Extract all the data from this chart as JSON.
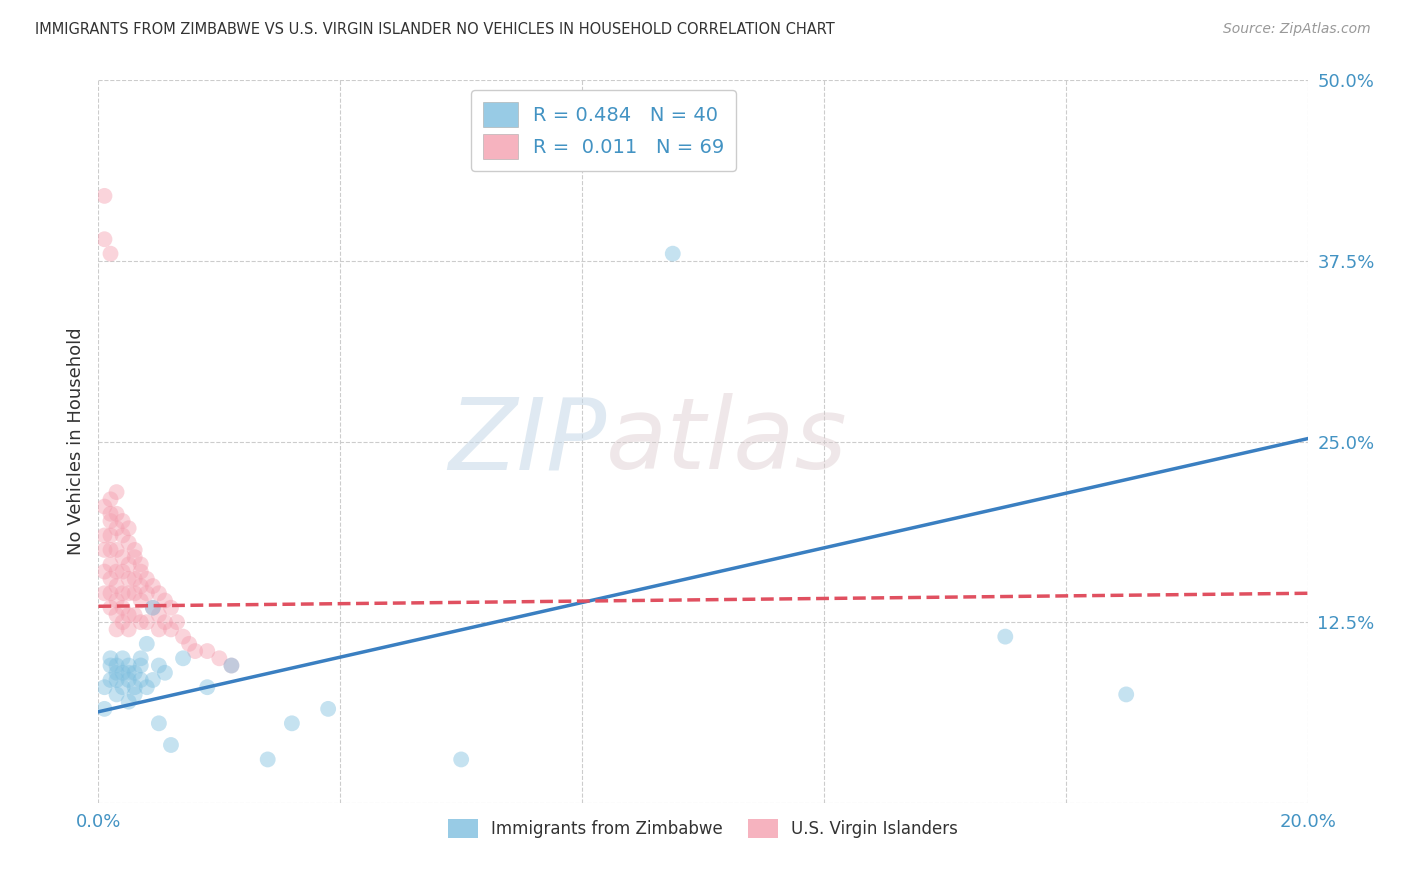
{
  "title": "IMMIGRANTS FROM ZIMBABWE VS U.S. VIRGIN ISLANDER NO VEHICLES IN HOUSEHOLD CORRELATION CHART",
  "source": "Source: ZipAtlas.com",
  "ylabel": "No Vehicles in Household",
  "xlim": [
    0.0,
    0.2
  ],
  "ylim": [
    0.0,
    0.5
  ],
  "xticks": [
    0.0,
    0.04,
    0.08,
    0.12,
    0.16,
    0.2
  ],
  "xticklabels": [
    "0.0%",
    "",
    "",
    "",
    "",
    "20.0%"
  ],
  "yticks": [
    0.0,
    0.125,
    0.25,
    0.375,
    0.5
  ],
  "yticklabels": [
    "",
    "12.5%",
    "25.0%",
    "37.5%",
    "50.0%"
  ],
  "grid_color": "#cccccc",
  "background_color": "#ffffff",
  "blue_R": 0.484,
  "blue_N": 40,
  "pink_R": 0.011,
  "pink_N": 69,
  "blue_color": "#7fbfdf",
  "pink_color": "#f4a0b0",
  "blue_line_color": "#3a7fc1",
  "pink_line_color": "#e05060",
  "blue_scatter_x": [
    0.001,
    0.001,
    0.002,
    0.002,
    0.002,
    0.003,
    0.003,
    0.003,
    0.003,
    0.004,
    0.004,
    0.004,
    0.005,
    0.005,
    0.005,
    0.005,
    0.006,
    0.006,
    0.006,
    0.007,
    0.007,
    0.007,
    0.008,
    0.008,
    0.009,
    0.009,
    0.01,
    0.01,
    0.011,
    0.012,
    0.014,
    0.018,
    0.022,
    0.028,
    0.032,
    0.038,
    0.06,
    0.095,
    0.15,
    0.17
  ],
  "blue_scatter_y": [
    0.08,
    0.065,
    0.095,
    0.085,
    0.1,
    0.075,
    0.09,
    0.095,
    0.085,
    0.08,
    0.09,
    0.1,
    0.07,
    0.085,
    0.09,
    0.095,
    0.075,
    0.08,
    0.09,
    0.085,
    0.095,
    0.1,
    0.08,
    0.11,
    0.085,
    0.135,
    0.095,
    0.055,
    0.09,
    0.04,
    0.1,
    0.08,
    0.095,
    0.03,
    0.055,
    0.065,
    0.03,
    0.38,
    0.115,
    0.075
  ],
  "pink_scatter_x": [
    0.001,
    0.001,
    0.001,
    0.001,
    0.001,
    0.002,
    0.002,
    0.002,
    0.002,
    0.002,
    0.002,
    0.002,
    0.002,
    0.003,
    0.003,
    0.003,
    0.003,
    0.003,
    0.003,
    0.003,
    0.003,
    0.004,
    0.004,
    0.004,
    0.004,
    0.004,
    0.004,
    0.005,
    0.005,
    0.005,
    0.005,
    0.005,
    0.005,
    0.006,
    0.006,
    0.006,
    0.006,
    0.007,
    0.007,
    0.007,
    0.007,
    0.008,
    0.008,
    0.008,
    0.009,
    0.009,
    0.01,
    0.01,
    0.01,
    0.011,
    0.011,
    0.012,
    0.012,
    0.013,
    0.014,
    0.015,
    0.016,
    0.018,
    0.02,
    0.022,
    0.002,
    0.003,
    0.004,
    0.005,
    0.006,
    0.007,
    0.001,
    0.001,
    0.002
  ],
  "pink_scatter_y": [
    0.205,
    0.185,
    0.175,
    0.16,
    0.145,
    0.2,
    0.185,
    0.175,
    0.165,
    0.155,
    0.145,
    0.135,
    0.195,
    0.2,
    0.19,
    0.175,
    0.16,
    0.15,
    0.14,
    0.13,
    0.12,
    0.185,
    0.17,
    0.16,
    0.145,
    0.135,
    0.125,
    0.18,
    0.165,
    0.155,
    0.145,
    0.13,
    0.12,
    0.17,
    0.155,
    0.145,
    0.13,
    0.165,
    0.15,
    0.14,
    0.125,
    0.155,
    0.145,
    0.125,
    0.15,
    0.135,
    0.145,
    0.13,
    0.12,
    0.14,
    0.125,
    0.135,
    0.12,
    0.125,
    0.115,
    0.11,
    0.105,
    0.105,
    0.1,
    0.095,
    0.21,
    0.215,
    0.195,
    0.19,
    0.175,
    0.16,
    0.42,
    0.39,
    0.38
  ],
  "blue_line_x0": 0.0,
  "blue_line_y0": 0.063,
  "blue_line_x1": 0.2,
  "blue_line_y1": 0.252,
  "pink_line_x0": 0.0,
  "pink_line_y0": 0.136,
  "pink_line_x1": 0.2,
  "pink_line_y1": 0.145,
  "watermark_zip": "ZIP",
  "watermark_atlas": "atlas",
  "marker_size": 130,
  "alpha": 0.45,
  "line_width": 2.5
}
